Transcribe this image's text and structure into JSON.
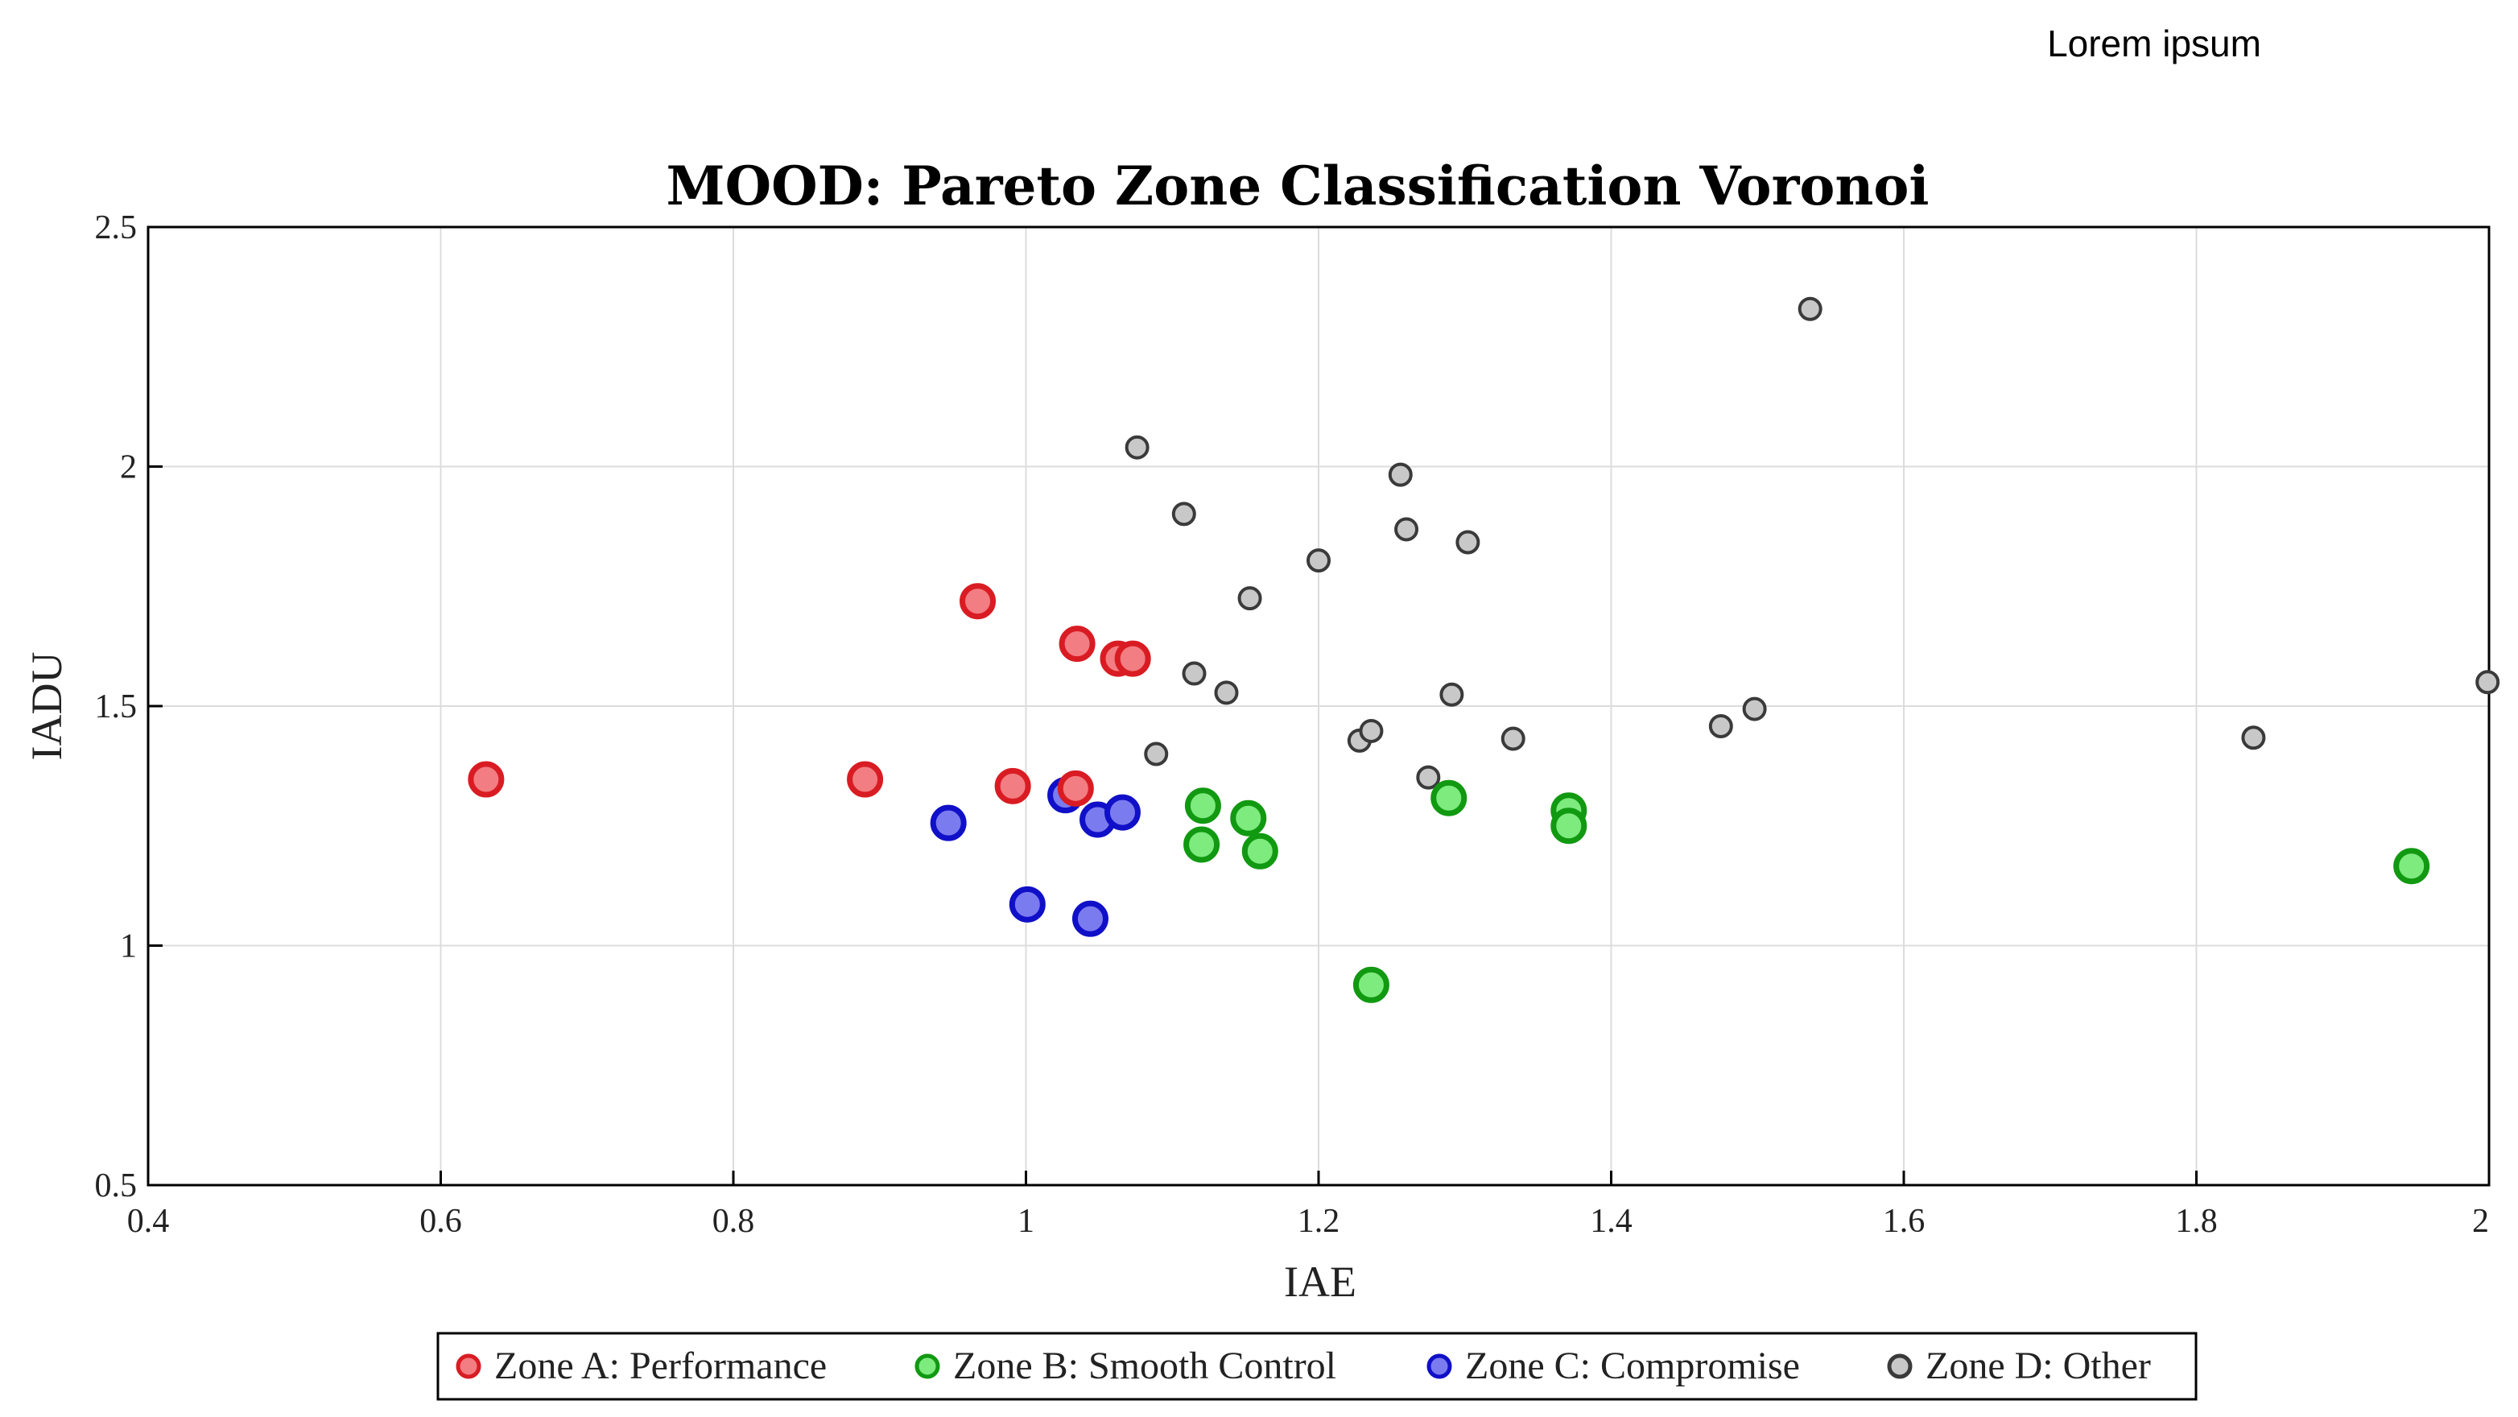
{
  "header_label": "Lorem ipsum",
  "colors": {
    "zone_a_fill": "#f27d82",
    "zone_a_edge": "#d91c23",
    "zone_b_fill": "#7deb7d",
    "zone_b_edge": "#119911",
    "zone_c_fill": "#7b7bf0",
    "zone_c_edge": "#1010c8",
    "zone_d_fill": "#c8c8c8",
    "zone_d_edge": "#3a3a3a"
  },
  "chart_data": {
    "type": "scatter",
    "title": "MOOD: Pareto Zone Classification Voronoi",
    "xlabel": "IAE",
    "ylabel": "IADU",
    "xlim": [
      0.4,
      2.0
    ],
    "ylim": [
      0.5,
      2.5
    ],
    "grid": true,
    "legend_position": "bottom-center",
    "x_ticks": [
      0.4,
      0.6,
      0.8,
      1.0,
      1.2,
      1.4,
      1.6,
      1.8,
      2.0
    ],
    "x_tick_labels": [
      "0.4",
      "0.6",
      "0.8",
      "1",
      "1.2",
      "1.4",
      "1.6",
      "1.8",
      "2"
    ],
    "y_ticks": [
      0.5,
      1.0,
      1.5,
      2.0,
      2.5
    ],
    "y_tick_labels": [
      "0.5",
      "1",
      "1.5",
      "2",
      "2.5"
    ],
    "series": [
      {
        "name": "Zone A: Performance",
        "key": "zone_a",
        "points": [
          {
            "x": 0.631,
            "y": 1.347
          },
          {
            "x": 0.89,
            "y": 1.347
          },
          {
            "x": 0.967,
            "y": 1.719
          },
          {
            "x": 0.991,
            "y": 1.333
          },
          {
            "x": 1.034,
            "y": 1.328
          },
          {
            "x": 1.035,
            "y": 1.63
          },
          {
            "x": 1.063,
            "y": 1.599
          },
          {
            "x": 1.073,
            "y": 1.599
          }
        ]
      },
      {
        "name": "Zone B: Smooth Control",
        "key": "zone_b",
        "points": [
          {
            "x": 1.12,
            "y": 1.211
          },
          {
            "x": 1.121,
            "y": 1.292
          },
          {
            "x": 1.152,
            "y": 1.266
          },
          {
            "x": 1.16,
            "y": 1.197
          },
          {
            "x": 1.236,
            "y": 0.918
          },
          {
            "x": 1.289,
            "y": 1.308
          },
          {
            "x": 1.371,
            "y": 1.282
          },
          {
            "x": 1.371,
            "y": 1.25
          },
          {
            "x": 1.947,
            "y": 1.166
          }
        ]
      },
      {
        "name": "Zone C: Compromise",
        "key": "zone_c",
        "points": [
          {
            "x": 0.947,
            "y": 1.256
          },
          {
            "x": 1.001,
            "y": 1.086
          },
          {
            "x": 1.027,
            "y": 1.314
          },
          {
            "x": 1.044,
            "y": 1.056
          },
          {
            "x": 1.049,
            "y": 1.263
          },
          {
            "x": 1.066,
            "y": 1.278
          }
        ]
      },
      {
        "name": "Zone D: Other",
        "key": "zone_d",
        "points": [
          {
            "x": 1.076,
            "y": 2.04
          },
          {
            "x": 1.089,
            "y": 1.4
          },
          {
            "x": 1.108,
            "y": 1.901
          },
          {
            "x": 1.115,
            "y": 1.568
          },
          {
            "x": 1.137,
            "y": 1.528
          },
          {
            "x": 1.153,
            "y": 1.725
          },
          {
            "x": 1.2,
            "y": 1.804
          },
          {
            "x": 1.228,
            "y": 1.428
          },
          {
            "x": 1.236,
            "y": 1.448
          },
          {
            "x": 1.256,
            "y": 1.983
          },
          {
            "x": 1.26,
            "y": 1.869
          },
          {
            "x": 1.275,
            "y": 1.351
          },
          {
            "x": 1.291,
            "y": 1.524
          },
          {
            "x": 1.302,
            "y": 1.842
          },
          {
            "x": 1.333,
            "y": 1.432
          },
          {
            "x": 1.475,
            "y": 1.458
          },
          {
            "x": 1.498,
            "y": 1.494
          },
          {
            "x": 1.536,
            "y": 2.329
          },
          {
            "x": 1.839,
            "y": 1.434
          },
          {
            "x": 1.999,
            "y": 1.55
          }
        ]
      }
    ]
  }
}
